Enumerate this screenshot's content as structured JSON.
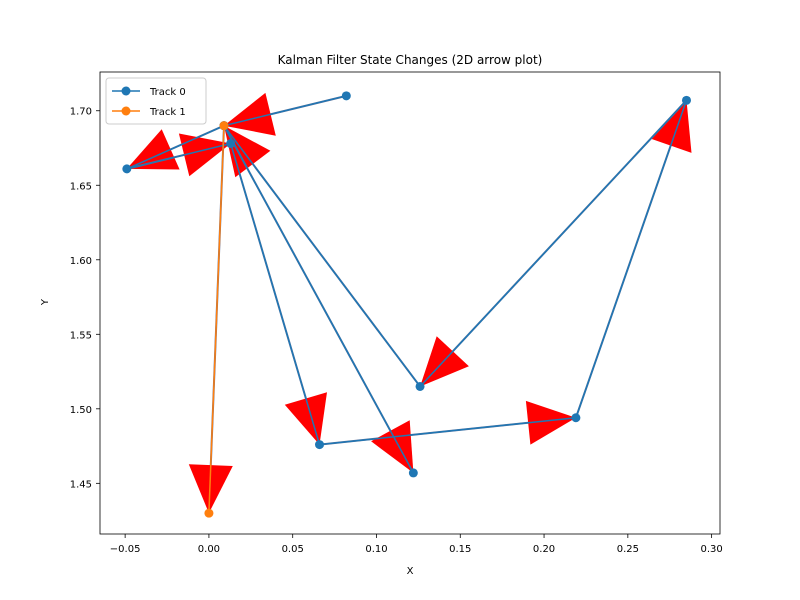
{
  "chart_data": {
    "type": "line",
    "title": "Kalman Filter State Changes (2D arrow plot)",
    "xlabel": "X",
    "ylabel": "Y",
    "xlim": [
      -0.065,
      0.305
    ],
    "ylim": [
      1.416,
      1.726
    ],
    "xticks": [
      -0.05,
      0.0,
      0.05,
      0.1,
      0.15,
      0.2,
      0.25,
      0.3
    ],
    "xtick_labels": [
      "−0.05",
      "0.00",
      "0.05",
      "0.10",
      "0.15",
      "0.20",
      "0.25",
      "0.30"
    ],
    "yticks": [
      1.45,
      1.5,
      1.55,
      1.6,
      1.65,
      1.7
    ],
    "ytick_labels": [
      "1.45",
      "1.50",
      "1.55",
      "1.60",
      "1.65",
      "1.70"
    ],
    "grid": false,
    "legend_position": "top-left",
    "series": [
      {
        "name": "Track 0",
        "color": "#1f77b4",
        "x": [
          0.082,
          0.009,
          -0.049,
          0.013,
          0.066,
          0.219,
          0.285,
          0.126,
          0.009,
          0.122
        ],
        "y": [
          1.71,
          1.69,
          1.661,
          1.678,
          1.476,
          1.494,
          1.707,
          1.515,
          1.69,
          1.457
        ]
      },
      {
        "name": "Track 1",
        "color": "#ff7f0e",
        "x": [
          0.009,
          0.0
        ],
        "y": [
          1.69,
          1.43
        ]
      }
    ],
    "arrow_color": "#ff0000",
    "arrow_line_color": "#5f6d94"
  }
}
